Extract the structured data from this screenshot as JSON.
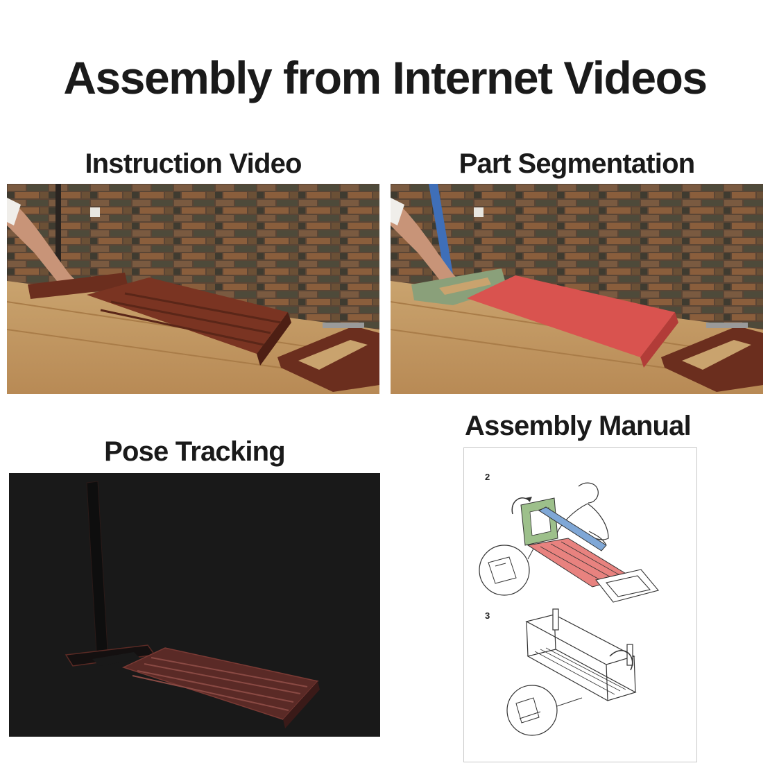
{
  "title": "Assembly from Internet Videos",
  "panels": {
    "instruction_video": {
      "title": "Instruction Video"
    },
    "part_segmentation": {
      "title": "Part Segmentation"
    },
    "pose_tracking": {
      "title": "Pose Tracking"
    },
    "assembly_manual": {
      "title": "Assembly Manual",
      "step_a": "2",
      "step_b": "3"
    }
  },
  "colors": {
    "segment_red": "#d9534f",
    "segment_green": "#8aa07a",
    "segment_blue": "#3f6fb8",
    "manual_red": "#e8827f",
    "manual_green": "#9dc08b",
    "manual_blue": "#7fa7d6"
  }
}
